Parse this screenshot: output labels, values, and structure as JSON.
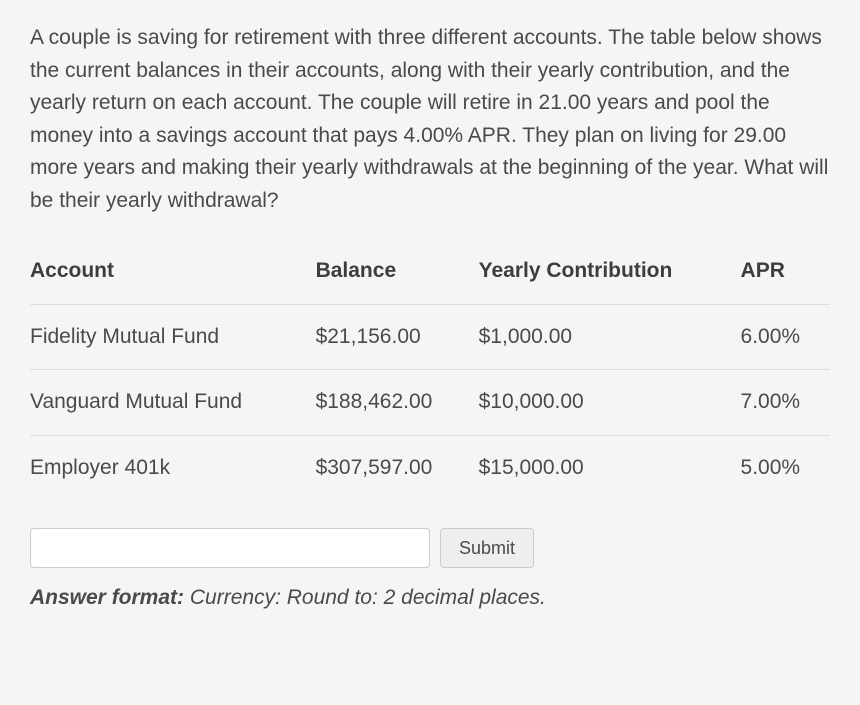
{
  "question": "A couple is saving for retirement with three different accounts. The table below shows the current balances in their accounts, along with their yearly contribution, and the yearly return on each account. The couple will retire in 21.00 years and pool the money into a savings account that pays 4.00% APR. They plan on living for 29.00 more years and making their yearly withdrawals at the beginning of the year. What will be their yearly withdrawal?",
  "table": {
    "columns": [
      "Account",
      "Balance",
      "Yearly Contribution",
      "APR"
    ],
    "rows": [
      [
        "Fidelity Mutual Fund",
        "$21,156.00",
        "$1,000.00",
        "6.00%"
      ],
      [
        "Vanguard Mutual Fund",
        "$188,462.00",
        "$10,000.00",
        "7.00%"
      ],
      [
        "Employer 401k",
        "$307,597.00",
        "$15,000.00",
        "5.00%"
      ]
    ]
  },
  "form": {
    "submitLabel": "Submit",
    "answerPlaceholder": ""
  },
  "answerFormat": {
    "label": "Answer format:",
    "value": "Currency: Round to: 2 decimal places."
  },
  "style": {
    "backgroundColor": "#f5f5f5",
    "textColor": "#4a4a4a",
    "borderColor": "#dddddd",
    "fontSize": 21
  }
}
